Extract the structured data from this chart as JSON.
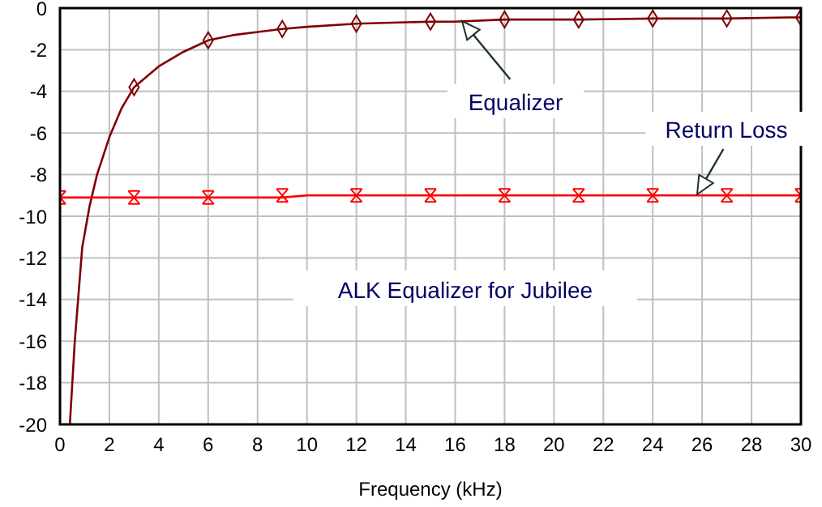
{
  "chart_data": {
    "type": "line",
    "xlabel": "Frequency (kHz)",
    "xlim": [
      0,
      30
    ],
    "xticks": [
      0,
      2,
      4,
      6,
      8,
      10,
      12,
      14,
      16,
      18,
      20,
      22,
      24,
      26,
      28,
      30
    ],
    "ylim": [
      -20,
      0
    ],
    "yticks": [
      -20,
      -18,
      -16,
      -14,
      -12,
      -10,
      -8,
      -6,
      -4,
      -2,
      0
    ],
    "grid": true,
    "series": [
      {
        "color": "#800000",
        "marker": "none",
        "x": [
          0.4,
          0.6,
          0.9,
          1.2,
          1.5,
          2,
          2.5,
          3,
          4,
          5,
          6,
          7,
          8,
          9,
          10,
          12,
          15,
          16,
          18,
          21,
          24,
          27,
          29.5,
          30
        ],
        "values": [
          -20,
          -16,
          -11.5,
          -9.5,
          -8,
          -6.2,
          -4.8,
          -3.8,
          -2.8,
          -2.1,
          -1.55,
          -1.3,
          -1.15,
          -1.0,
          -0.9,
          -0.75,
          -0.65,
          -0.65,
          -0.55,
          -0.55,
          -0.5,
          -0.5,
          -0.45,
          -0.45
        ]
      },
      {
        "type": "scatter",
        "color": "#800000",
        "marker": "diamond",
        "x": [
          3,
          6,
          9,
          12,
          15,
          18,
          21,
          24,
          27,
          30
        ],
        "values": [
          -3.8,
          -1.55,
          -1.0,
          -0.75,
          -0.65,
          -0.55,
          -0.55,
          -0.5,
          -0.5,
          -0.45
        ]
      },
      {
        "color": "#ff0000",
        "marker": "none",
        "x": [
          0,
          3,
          6,
          9,
          10,
          12,
          15,
          18,
          21,
          24,
          27,
          30
        ],
        "values": [
          -9.1,
          -9.1,
          -9.1,
          -9.1,
          -9.0,
          -9.0,
          -9.0,
          -9.0,
          -9.0,
          -9.0,
          -9.0,
          -9.0
        ]
      },
      {
        "type": "scatter",
        "color": "#ff0000",
        "marker": "cross",
        "x": [
          0,
          3,
          6,
          9,
          12,
          15,
          18,
          21,
          24,
          27,
          30
        ],
        "values": [
          -9.1,
          -9.1,
          -9.1,
          -9.0,
          -9.0,
          -9.0,
          -9.0,
          -9.0,
          -9.0,
          -9.0,
          -9.0
        ]
      }
    ],
    "annotations": [
      "Equalizer",
      "Return Loss",
      "ALK Equalizer for Jubilee"
    ]
  }
}
